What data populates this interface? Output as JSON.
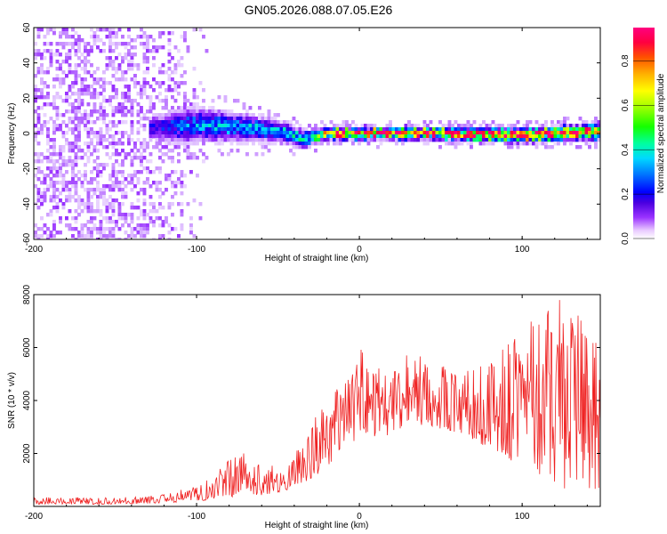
{
  "title": "GN05.2026.088.07.05.E26",
  "chart_data": [
    {
      "type": "heatmap",
      "title": "GN05.2026.088.07.05.E26",
      "xlabel": "Height of straight line (km)",
      "ylabel": "Frequency (Hz)",
      "xlim": [
        -200,
        148
      ],
      "ylim": [
        -60,
        60
      ],
      "xticks": [
        -200,
        -100,
        0,
        100
      ],
      "yticks": [
        -60,
        -40,
        -20,
        0,
        20,
        40,
        60
      ],
      "colorbar": {
        "label": "Normalized spectral amplitude",
        "range": [
          0.0,
          0.95
        ],
        "ticks": [
          0.0,
          0.2,
          0.4,
          0.6,
          0.8
        ],
        "tick_labels": [
          "0.0",
          "0.2",
          "0.4",
          "0.6",
          "0.8"
        ],
        "colormap": [
          "#ffffff",
          "#d9b3ff",
          "#9a33ff",
          "#5a00e6",
          "#0000ff",
          "#0070ff",
          "#00d8ff",
          "#00ffa0",
          "#14ff00",
          "#9dff00",
          "#ffff00",
          "#ffb000",
          "#ff5000",
          "#ff0040",
          "#ff007f"
        ]
      },
      "description_free": true,
      "noise_region": {
        "x_from": -200,
        "x_to": -90,
        "freq_span": [
          -60,
          60
        ],
        "amplitude": 0.1
      },
      "signal_band": {
        "x_from": -130,
        "x_to": 148,
        "center_hz_by_x": [
          [
            -130,
            4
          ],
          [
            -100,
            6
          ],
          [
            -70,
            4
          ],
          [
            -50,
            2
          ],
          [
            -35,
            -2
          ],
          [
            -20,
            1
          ],
          [
            0,
            1
          ],
          [
            50,
            1
          ],
          [
            100,
            0
          ],
          [
            148,
            2
          ]
        ],
        "half_width_hz_by_x": [
          [
            -130,
            6
          ],
          [
            -110,
            9
          ],
          [
            -90,
            8
          ],
          [
            -60,
            6
          ],
          [
            -40,
            5
          ],
          [
            -20,
            3
          ],
          [
            0,
            3
          ],
          [
            148,
            4
          ]
        ],
        "peak_amplitude_by_x": [
          [
            -130,
            0.25
          ],
          [
            -100,
            0.4
          ],
          [
            -60,
            0.45
          ],
          [
            -30,
            0.5
          ],
          [
            -20,
            0.95
          ],
          [
            148,
            0.95
          ]
        ]
      }
    },
    {
      "type": "line",
      "xlabel": "Height of straight line (km)",
      "ylabel": "SNR (10 * v/v)",
      "xlim": [
        -200,
        148
      ],
      "ylim": [
        0,
        8000
      ],
      "xticks": [
        -200,
        -100,
        0,
        100
      ],
      "yticks": [
        2000,
        4000,
        6000,
        8000
      ],
      "color": "#ef2020",
      "series": [
        {
          "name": "SNR",
          "envelope": [
            [
              -200,
              80,
              380
            ],
            [
              -150,
              80,
              320
            ],
            [
              -120,
              120,
              450
            ],
            [
              -100,
              200,
              800
            ],
            [
              -80,
              300,
              1800
            ],
            [
              -70,
              500,
              2100
            ],
            [
              -60,
              400,
              1600
            ],
            [
              -45,
              600,
              1500
            ],
            [
              -30,
              1000,
              3100
            ],
            [
              -20,
              1500,
              4000
            ],
            [
              -10,
              2200,
              5000
            ],
            [
              0,
              2600,
              6000
            ],
            [
              20,
              2700,
              5800
            ],
            [
              40,
              3000,
              5700
            ],
            [
              60,
              2800,
              5000
            ],
            [
              80,
              2200,
              5600
            ],
            [
              100,
              1500,
              6600
            ],
            [
              120,
              800,
              8000
            ],
            [
              135,
              500,
              7300
            ],
            [
              148,
              400,
              6200
            ]
          ]
        }
      ]
    }
  ]
}
